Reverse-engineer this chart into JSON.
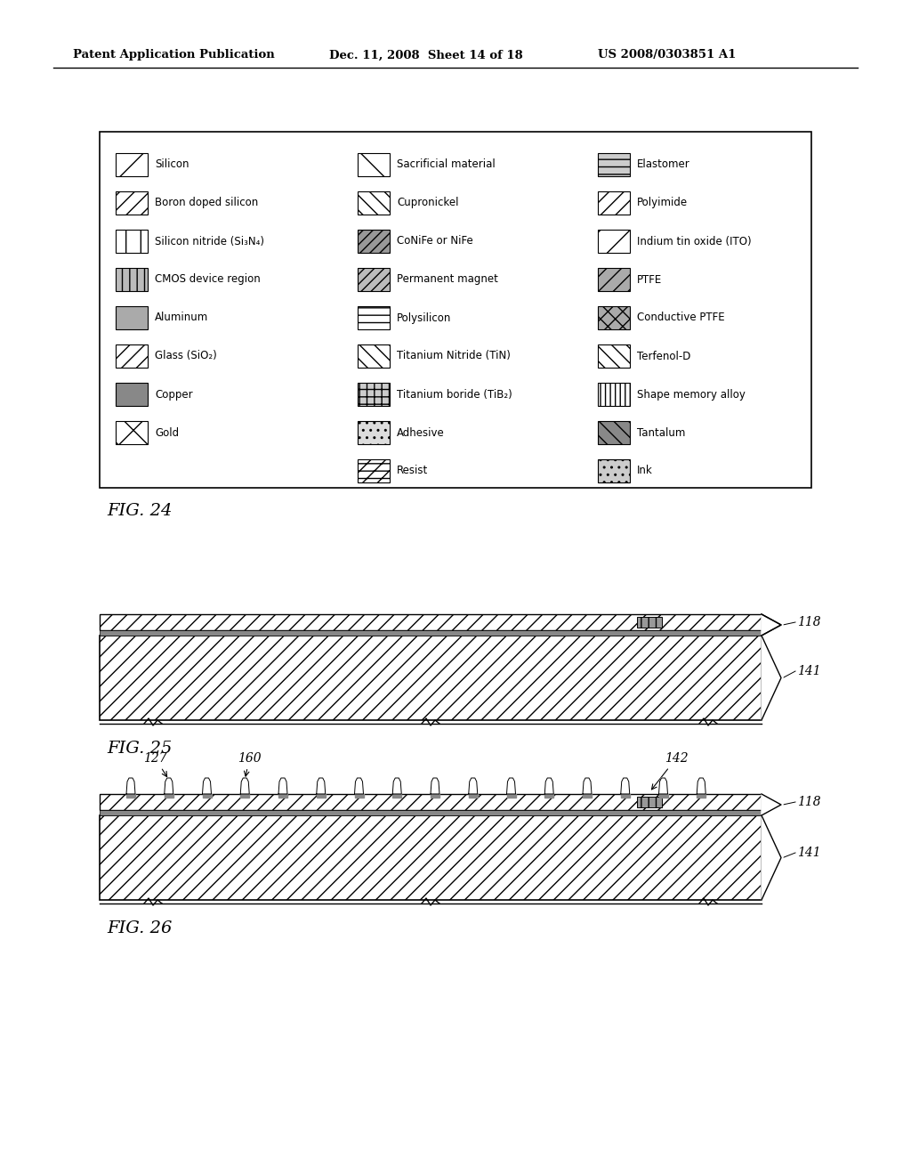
{
  "header_left": "Patent Application Publication",
  "header_mid": "Dec. 11, 2008  Sheet 14 of 18",
  "header_right": "US 2008/0303851 A1",
  "fig24_label": "FIG. 24",
  "fig25_label": "FIG. 25",
  "fig26_label": "FIG. 26",
  "legend_col1": [
    "Silicon",
    "Boron doped silicon",
    "Silicon nitride (Si₃N₄)",
    "CMOS device region",
    "Aluminum",
    "Glass (SiO₂)",
    "Copper",
    "Gold"
  ],
  "legend_col2": [
    "Sacrificial material",
    "Cupronickel",
    "CoNiFe or NiFe",
    "Permanent magnet",
    "Polysilicon",
    "Titanium Nitride (TiN)",
    "Titanium boride (TiB₂)",
    "Adhesive",
    "Resist"
  ],
  "legend_col3": [
    "Elastomer",
    "Polyimide",
    "Indium tin oxide (ITO)",
    "PTFE",
    "Conductive PTFE",
    "Terfenol-D",
    "Shape memory alloy",
    "Tantalum",
    "Ink"
  ],
  "label_118": "118",
  "label_141": "141",
  "label_127": "127",
  "label_160": "160",
  "label_142": "142",
  "bg_color": "#ffffff"
}
